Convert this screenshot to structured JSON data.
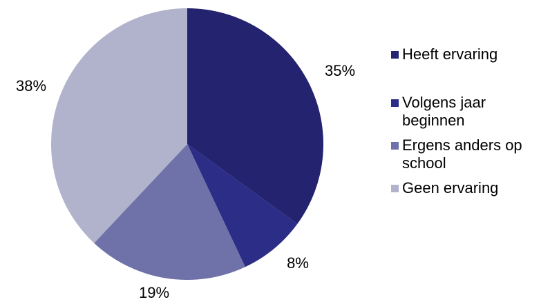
{
  "chart_data": {
    "type": "pie",
    "title": "",
    "slices": [
      {
        "label": "Heeft ervaring",
        "value": 35,
        "display": "35%",
        "color": "#23236f"
      },
      {
        "label": "Volgens jaar beginnen",
        "value": 8,
        "display": "8%",
        "color": "#2b2d87"
      },
      {
        "label": "Ergens anders op school",
        "value": 19,
        "display": "19%",
        "color": "#6f72a8"
      },
      {
        "label": "Geen ervaring",
        "value": 38,
        "display": "38%",
        "color": "#b1b2cc"
      }
    ],
    "start_angle": "12 o'clock",
    "direction": "clockwise",
    "legend_position": "right"
  },
  "legend": {
    "items": [
      {
        "label": "Heeft ervaring"
      },
      {
        "label": "Volgens jaar beginnen"
      },
      {
        "label": "Ergens anders op school"
      },
      {
        "label": "Geen ervaring"
      }
    ]
  }
}
